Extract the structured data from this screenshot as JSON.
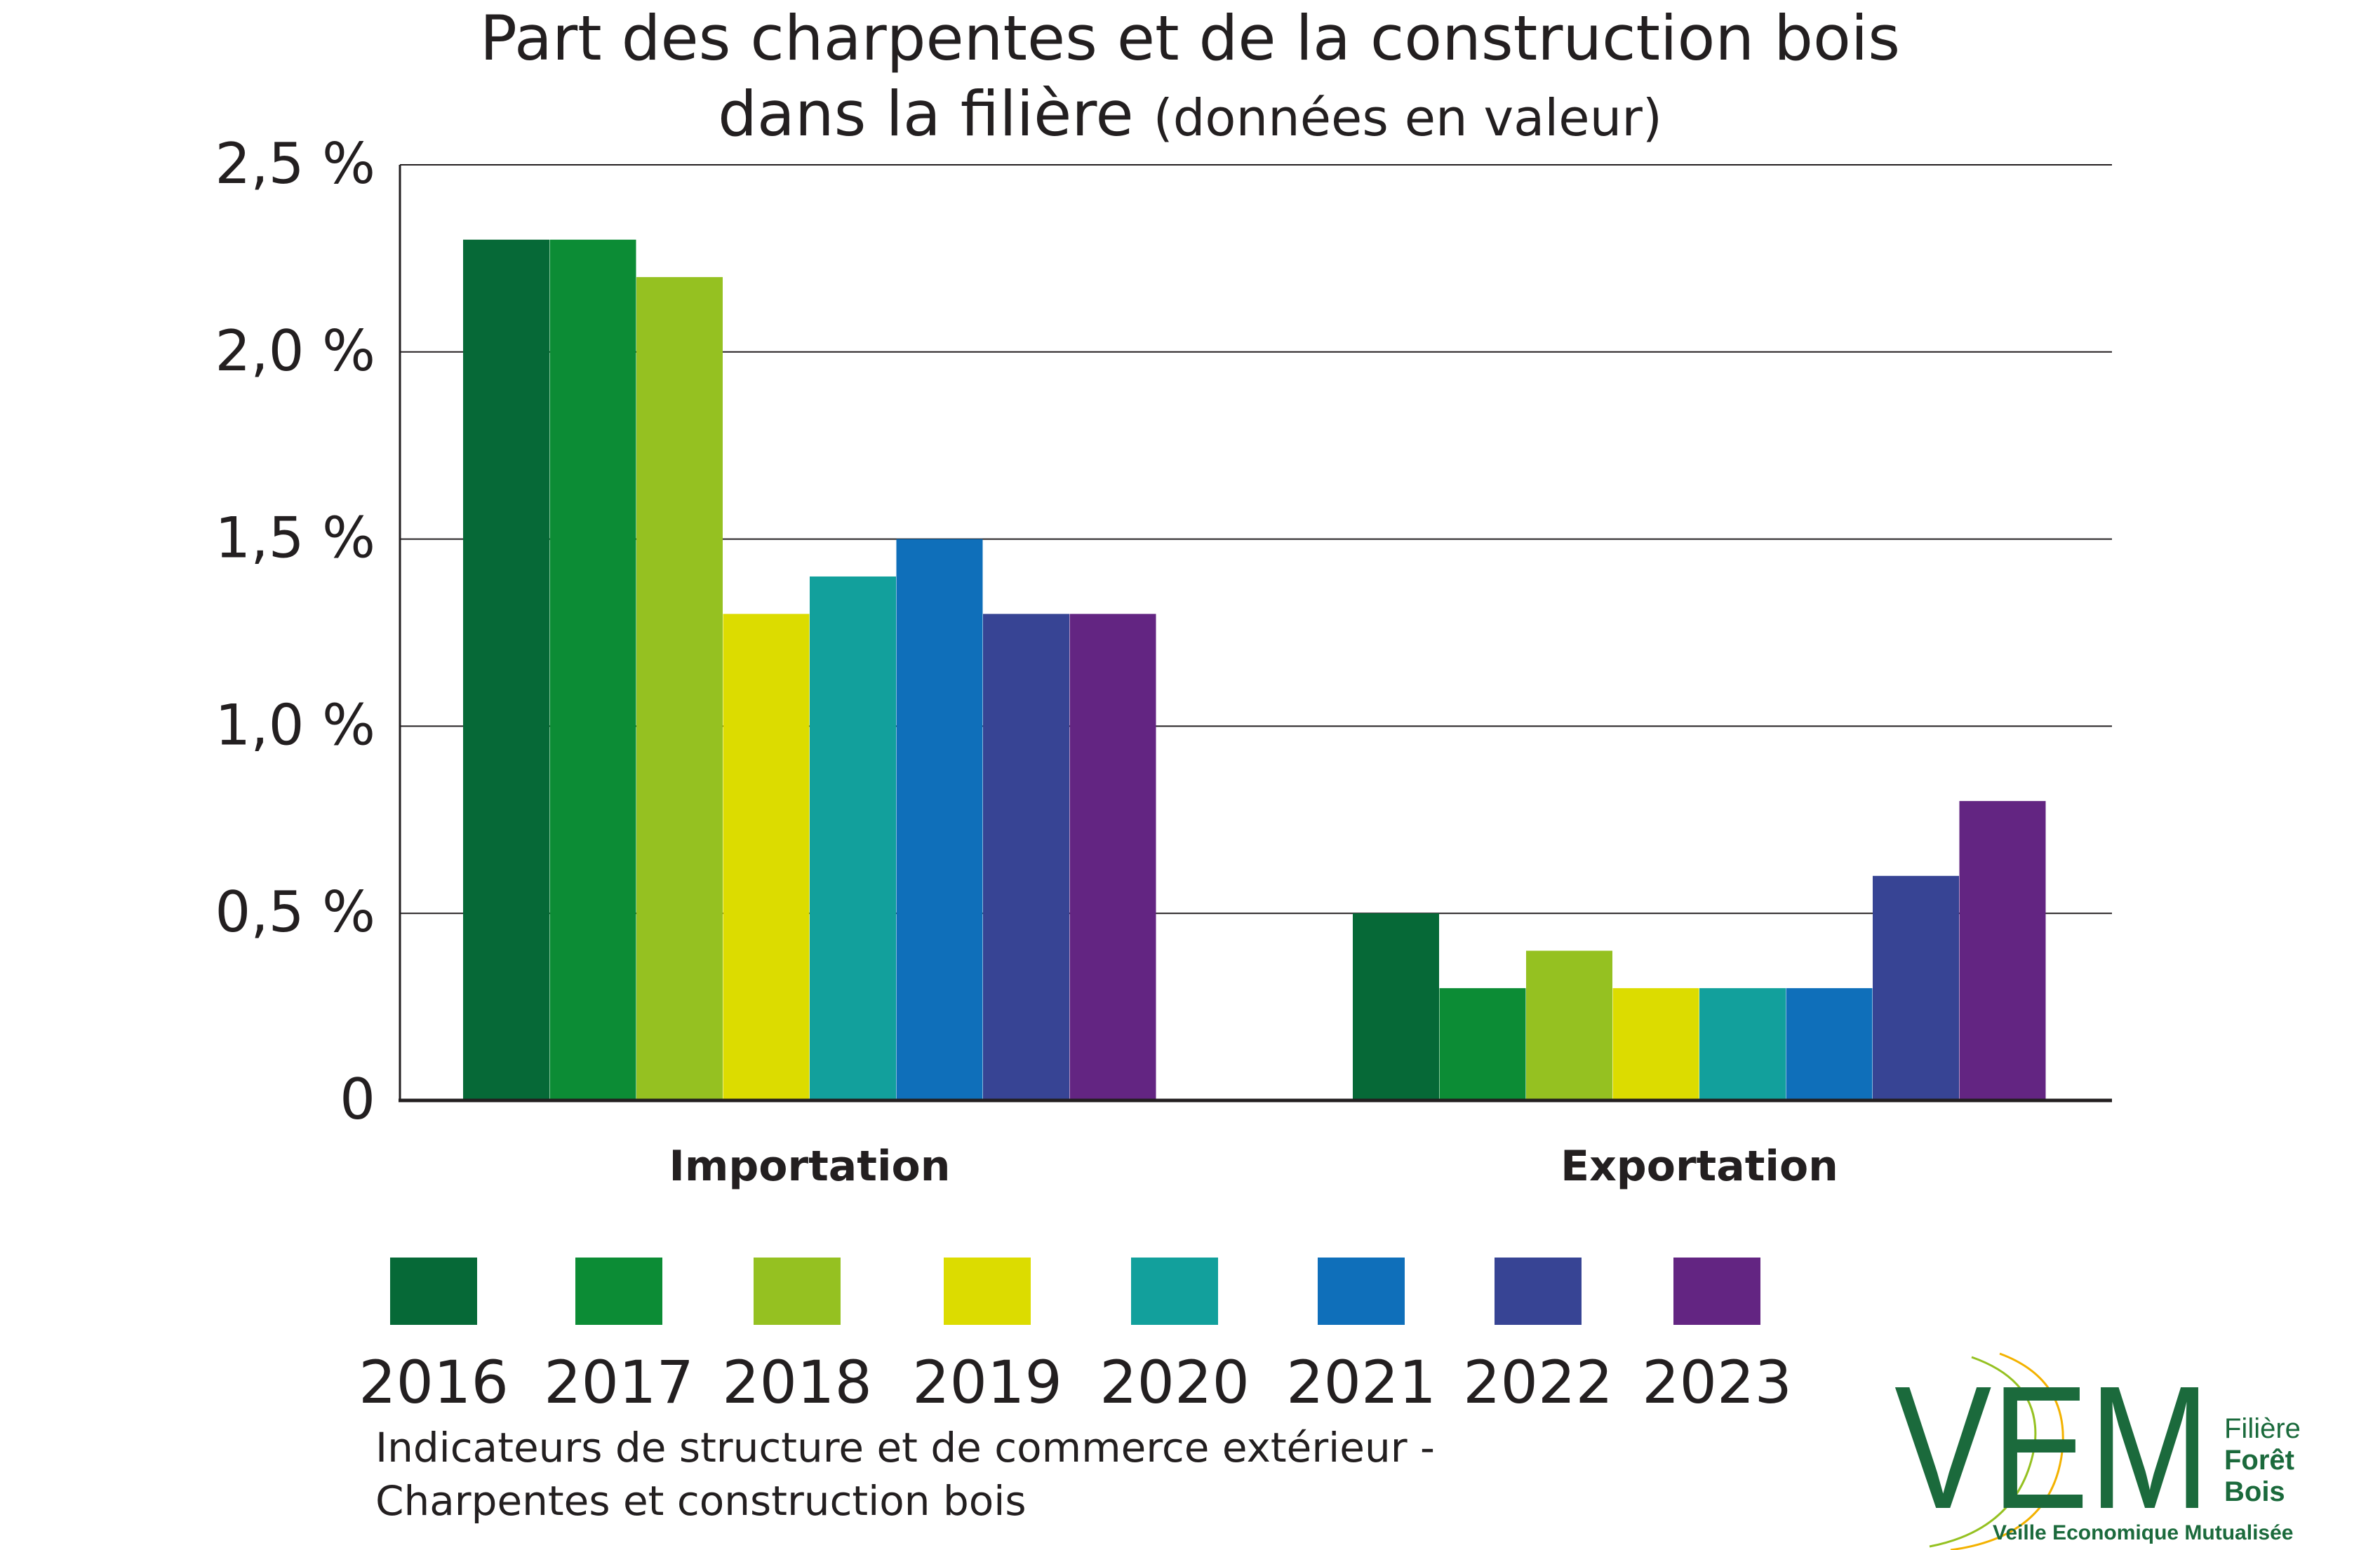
{
  "chart_data": {
    "type": "bar",
    "title": "Part des charpentes et de la construction bois",
    "title_line2": "dans la filière",
    "subtitle": "(données en valeur)",
    "categories": [
      "Importation",
      "Exportation"
    ],
    "series": [
      {
        "name": "2016",
        "color": "#066937",
        "values": [
          2.3,
          0.5
        ]
      },
      {
        "name": "2017",
        "color": "#0c8c35",
        "values": [
          2.3,
          0.3
        ]
      },
      {
        "name": "2018",
        "color": "#95c121",
        "values": [
          2.2,
          0.4
        ]
      },
      {
        "name": "2019",
        "color": "#dcdc00",
        "values": [
          1.3,
          0.3
        ]
      },
      {
        "name": "2020",
        "color": "#12a09c",
        "values": [
          1.4,
          0.3
        ]
      },
      {
        "name": "2021",
        "color": "#0f6fba",
        "values": [
          1.5,
          0.3
        ]
      },
      {
        "name": "2022",
        "color": "#374494",
        "values": [
          1.3,
          0.6
        ]
      },
      {
        "name": "2023",
        "color": "#632582",
        "values": [
          1.3,
          0.8
        ]
      }
    ],
    "y_ticks": [
      {
        "value": 0,
        "label": "0"
      },
      {
        "value": 0.5,
        "label": "0,5 %"
      },
      {
        "value": 1.0,
        "label": "1,0 %"
      },
      {
        "value": 1.5,
        "label": "1,5 %"
      },
      {
        "value": 2.0,
        "label": "2,0 %"
      },
      {
        "value": 2.5,
        "label": "2,5 %"
      }
    ],
    "ylim": [
      0,
      2.5
    ],
    "grid": true,
    "legend_position": "bottom"
  },
  "footer": {
    "source_line1": "Indicateurs de structure et de commerce extérieur -",
    "source_line2": "Charpentes et construction bois"
  },
  "logo": {
    "letters": "VEM",
    "line1": "Filière",
    "line2": "Forêt",
    "line3": "Bois",
    "tagline": "Veille Economique Mutualisée",
    "color": "#1b6a3c",
    "accent": "#f3b200"
  }
}
